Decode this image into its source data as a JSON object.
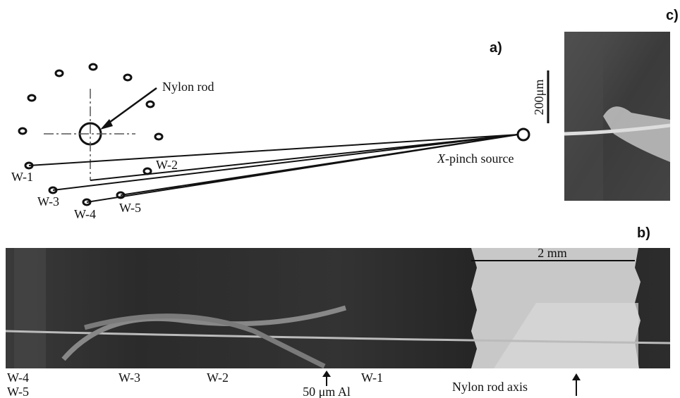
{
  "panels": {
    "a": "a)",
    "b": "b)",
    "c": "c)"
  },
  "diagram": {
    "rod_label": "Nylon rod",
    "wires": [
      "W-1",
      "W-2",
      "W-3",
      "W-4",
      "W-5"
    ],
    "source": {
      "italic": "X",
      "rest": "-pinch source"
    }
  },
  "inset": {
    "scale": "200μm"
  },
  "radiograph": {
    "scale": "2 mm",
    "labels": [
      "W-4",
      "W-5",
      "W-3",
      "W-2",
      "50 μm Al",
      "W-1",
      "Nylon rod axis"
    ]
  }
}
